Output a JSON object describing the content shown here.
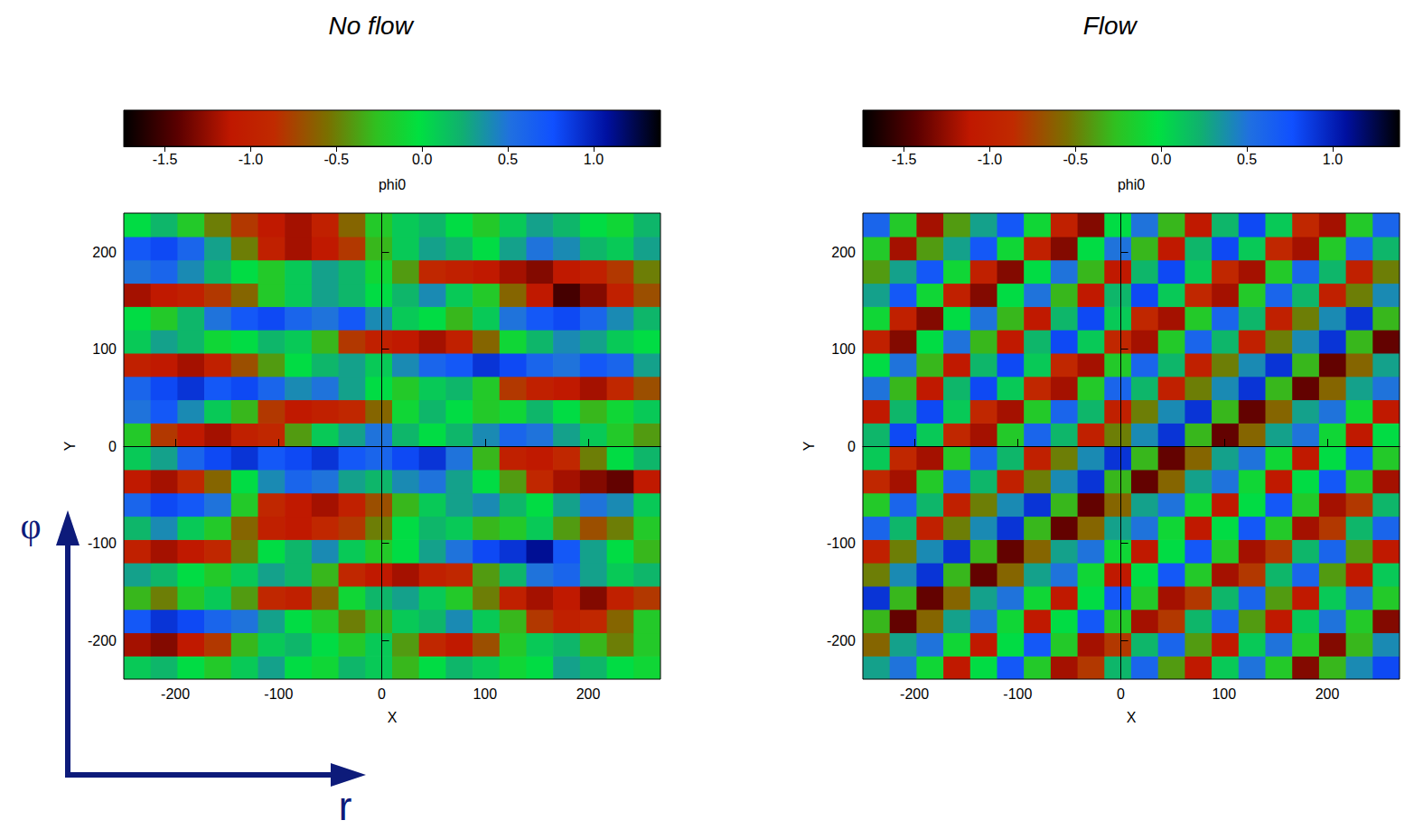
{
  "chart_data": [
    {
      "type": "heatmap",
      "title": "No flow",
      "x_label": "X",
      "y_label": "Y",
      "xlim": [
        -250,
        270
      ],
      "xticks": [
        -200,
        -100,
        0,
        100,
        200
      ],
      "ylim": [
        -240,
        240
      ],
      "yticks": [
        -200,
        -100,
        0,
        100,
        200
      ],
      "x": [
        -237,
        -211,
        -185,
        -159,
        -133,
        -107,
        -81,
        -55,
        -29,
        -3,
        23,
        49,
        75,
        101,
        127,
        153,
        179,
        205,
        231,
        257
      ],
      "y": [
        -228,
        -204,
        -180,
        -156,
        -132,
        -108,
        -84,
        -60,
        -36,
        -12,
        12,
        36,
        60,
        84,
        108,
        132,
        156,
        180,
        204,
        228
      ],
      "values": [
        [
          0.1,
          0.2,
          0.0,
          -0.2,
          0.1,
          0.3,
          0.0,
          -0.1,
          0.2,
          0.1,
          -0.3,
          0.0,
          0.2,
          0.1,
          -0.1,
          0.0,
          0.3,
          0.2,
          0.0,
          -0.1
        ],
        [
          -1.2,
          -1.3,
          -1.1,
          -0.8,
          -0.3,
          0.1,
          0.2,
          0.0,
          -0.2,
          0.1,
          -0.4,
          -0.9,
          -1.1,
          -0.7,
          -0.2,
          0.1,
          0.2,
          -0.3,
          -0.5,
          -0.2
        ],
        [
          0.7,
          0.9,
          0.8,
          0.6,
          0.5,
          0.3,
          0.0,
          -0.2,
          -0.5,
          -0.3,
          0.1,
          0.2,
          0.4,
          0.1,
          -0.3,
          -0.8,
          -1.0,
          -0.9,
          -0.6,
          -0.2
        ],
        [
          -0.3,
          -0.5,
          -0.2,
          0.1,
          -0.4,
          -0.9,
          -1.0,
          -0.6,
          -0.1,
          0.2,
          0.3,
          0.1,
          -0.2,
          -0.5,
          -1.0,
          -1.2,
          -1.1,
          -1.3,
          -1.0,
          -0.8
        ],
        [
          0.3,
          0.2,
          0.0,
          -0.2,
          0.1,
          0.3,
          0.2,
          -0.3,
          -0.9,
          -1.1,
          -1.2,
          -1.0,
          -0.9,
          -0.4,
          0.2,
          0.5,
          0.6,
          0.3,
          0.1,
          0.2
        ],
        [
          -1.0,
          -1.2,
          -1.1,
          -0.9,
          -0.5,
          0.0,
          0.2,
          0.4,
          0.1,
          -0.2,
          0.0,
          0.3,
          0.5,
          0.8,
          0.9,
          1.1,
          0.7,
          0.3,
          0.0,
          -0.3
        ],
        [
          0.2,
          0.4,
          0.1,
          -0.2,
          -0.6,
          -1.0,
          -1.1,
          -0.9,
          -0.8,
          -0.5,
          0.0,
          0.2,
          0.1,
          -0.3,
          -0.2,
          0.1,
          -0.4,
          -0.7,
          -0.5,
          -0.2
        ],
        [
          0.6,
          0.8,
          0.7,
          0.5,
          -0.2,
          -0.9,
          -1.1,
          -1.2,
          -1.0,
          -0.7,
          -0.3,
          0.1,
          0.3,
          0.4,
          0.2,
          0.0,
          0.3,
          0.5,
          0.4,
          0.1
        ],
        [
          -1.1,
          -1.2,
          -0.9,
          -0.6,
          0.0,
          0.4,
          0.6,
          0.5,
          0.3,
          0.2,
          0.4,
          0.5,
          0.3,
          0.0,
          -0.4,
          -0.9,
          -1.2,
          -1.3,
          -1.4,
          -1.1
        ],
        [
          0.1,
          0.3,
          0.6,
          0.8,
          0.9,
          0.7,
          0.8,
          0.9,
          0.7,
          0.6,
          0.8,
          0.9,
          0.5,
          -0.3,
          -1.0,
          -1.1,
          -0.9,
          -0.5,
          0.0,
          0.2
        ],
        [
          -0.2,
          -0.8,
          -1.1,
          -1.2,
          -1.0,
          -0.9,
          -0.4,
          0.1,
          0.3,
          0.5,
          0.2,
          0.0,
          0.2,
          0.4,
          0.6,
          0.5,
          0.3,
          0.1,
          -0.2,
          -0.4
        ],
        [
          0.5,
          0.7,
          0.4,
          0.1,
          -0.3,
          -0.8,
          -1.1,
          -1.0,
          -0.9,
          -0.6,
          -0.1,
          0.2,
          0.0,
          -0.2,
          -0.1,
          0.2,
          0.0,
          -0.3,
          -0.1,
          0.1
        ],
        [
          0.6,
          0.8,
          0.9,
          0.7,
          0.8,
          0.6,
          0.4,
          0.5,
          0.3,
          0.0,
          -0.2,
          0.1,
          0.2,
          -0.2,
          -0.8,
          -1.0,
          -1.1,
          -1.2,
          -0.9,
          -0.7
        ],
        [
          -1.0,
          -1.1,
          -1.2,
          -1.0,
          -0.7,
          -0.4,
          0.0,
          0.2,
          0.3,
          0.1,
          0.4,
          0.6,
          0.7,
          0.9,
          0.8,
          0.6,
          0.5,
          0.7,
          0.6,
          0.3
        ],
        [
          0.1,
          0.3,
          0.2,
          -0.1,
          0.0,
          0.2,
          0.1,
          -0.3,
          -0.8,
          -1.0,
          -1.1,
          -1.2,
          -1.0,
          -0.6,
          -0.1,
          0.2,
          0.4,
          0.3,
          0.1,
          0.0
        ],
        [
          0.0,
          -0.2,
          0.2,
          0.5,
          0.7,
          0.8,
          0.6,
          0.5,
          0.7,
          0.4,
          0.1,
          0.0,
          -0.3,
          0.1,
          0.5,
          0.7,
          0.8,
          0.6,
          0.4,
          0.2
        ],
        [
          -1.2,
          -1.1,
          -1.0,
          -0.8,
          -0.6,
          -0.2,
          0.1,
          0.3,
          0.2,
          0.0,
          0.2,
          0.4,
          0.1,
          -0.2,
          -0.6,
          -1.1,
          -1.5,
          -1.3,
          -1.0,
          -0.7
        ],
        [
          0.5,
          0.6,
          0.4,
          0.2,
          0.0,
          -0.2,
          0.1,
          0.3,
          0.2,
          -0.1,
          -0.4,
          -0.9,
          -1.0,
          -1.1,
          -1.2,
          -1.3,
          -1.1,
          -1.0,
          -0.8,
          -0.5
        ],
        [
          0.7,
          0.8,
          0.6,
          0.3,
          -0.5,
          -1.0,
          -1.2,
          -1.1,
          -0.8,
          -0.3,
          0.1,
          0.3,
          0.2,
          0.0,
          0.3,
          0.5,
          0.4,
          0.2,
          0.1,
          0.3
        ],
        [
          0.0,
          0.2,
          -0.2,
          -0.5,
          -0.8,
          -1.1,
          -1.2,
          -1.0,
          -0.6,
          -0.2,
          0.1,
          0.2,
          0.0,
          -0.2,
          0.1,
          0.3,
          0.2,
          0.0,
          -0.1,
          0.2
        ]
      ],
      "colorbar": {
        "label": "phi0",
        "range": [
          -1.74,
          1.39
        ],
        "ticks": [
          -1.5,
          {
            "value": -1.0,
            "label": "-1.0"
          },
          -0.5,
          {
            "value": 0.0,
            "label": "0.0"
          },
          0.5,
          {
            "value": 1.0,
            "label": "1.0"
          }
        ]
      },
      "annotations": [
        "φ",
        "r"
      ]
    },
    {
      "type": "heatmap",
      "title": "Flow",
      "x_label": "X",
      "y_label": "Y",
      "xlim": [
        -250,
        270
      ],
      "xticks": [
        -200,
        -100,
        0,
        100,
        200
      ],
      "ylim": [
        -240,
        240
      ],
      "yticks": [
        -200,
        -100,
        0,
        100,
        200
      ],
      "x": [
        -237,
        -211,
        -185,
        -159,
        -133,
        -107,
        -81,
        -55,
        -29,
        -3,
        23,
        49,
        75,
        101,
        127,
        153,
        179,
        205,
        231,
        257
      ],
      "y": [
        -228,
        -204,
        -180,
        -156,
        -132,
        -108,
        -84,
        -60,
        -36,
        -12,
        12,
        36,
        60,
        84,
        108,
        132,
        156,
        180,
        204,
        228
      ],
      "values": [
        [
          0.3,
          0.5,
          -0.1,
          -1.1,
          0.0,
          0.7,
          -0.2,
          -1.2,
          -0.8,
          0.2,
          0.6,
          -0.4,
          -1.1,
          0.1,
          0.5,
          -0.2,
          -1.3,
          -0.3,
          0.4,
          0.8
        ],
        [
          -0.6,
          0.3,
          0.5,
          -0.1,
          -1.1,
          0.0,
          0.7,
          -0.2,
          -1.2,
          -0.8,
          0.2,
          0.6,
          -0.4,
          -1.1,
          0.1,
          0.5,
          -0.2,
          -1.3,
          -0.3,
          0.4
        ],
        [
          -0.3,
          -1.4,
          -0.6,
          0.3,
          0.5,
          -0.1,
          -1.1,
          0.0,
          0.7,
          -0.2,
          -1.2,
          -0.8,
          0.2,
          0.6,
          -0.4,
          -1.1,
          0.1,
          0.5,
          -0.2,
          -1.3
        ],
        [
          0.9,
          -0.3,
          -1.4,
          -0.6,
          0.3,
          0.5,
          -0.1,
          -1.1,
          0.0,
          0.7,
          -0.2,
          -1.2,
          -0.8,
          0.2,
          0.6,
          -0.4,
          -1.1,
          0.1,
          0.5,
          -0.2
        ],
        [
          -0.5,
          0.4,
          0.9,
          -0.3,
          -1.4,
          -0.6,
          0.3,
          0.5,
          -0.1,
          -1.1,
          0.0,
          0.7,
          -0.2,
          -1.2,
          -0.8,
          0.2,
          0.6,
          -0.4,
          -1.1,
          0.1
        ],
        [
          -1.0,
          -0.5,
          0.4,
          0.9,
          -0.3,
          -1.4,
          -0.6,
          0.3,
          0.5,
          -0.1,
          -1.1,
          0.0,
          0.7,
          -0.2,
          -1.2,
          -0.8,
          0.2,
          0.6,
          -0.4,
          -1.1
        ],
        [
          0.6,
          0.2,
          -1.0,
          -0.5,
          0.4,
          0.9,
          -0.3,
          -1.4,
          -0.6,
          0.3,
          0.5,
          -0.1,
          -1.1,
          0.0,
          0.7,
          -0.2,
          -1.2,
          -0.8,
          0.2,
          0.6
        ],
        [
          -0.2,
          0.6,
          0.2,
          -1.0,
          -0.5,
          0.4,
          0.9,
          -0.3,
          -1.4,
          -0.6,
          0.3,
          0.5,
          -0.1,
          -1.1,
          0.0,
          0.7,
          -0.2,
          -1.2,
          -0.8,
          0.2
        ],
        [
          -0.9,
          -1.2,
          -0.2,
          0.6,
          0.2,
          -1.0,
          -0.5,
          0.4,
          0.9,
          -0.3,
          -1.4,
          -0.6,
          0.3,
          0.5,
          -0.1,
          -1.1,
          0.0,
          0.7,
          -0.2,
          -1.2
        ],
        [
          0.1,
          -0.9,
          -1.2,
          -0.2,
          0.6,
          0.2,
          -1.0,
          -0.5,
          0.4,
          0.9,
          -0.3,
          -1.4,
          -0.6,
          0.3,
          0.5,
          -0.1,
          -1.1,
          0.0,
          0.7,
          -0.2
        ],
        [
          0.2,
          0.8,
          0.1,
          -0.9,
          -1.2,
          -0.2,
          0.6,
          0.2,
          -1.0,
          -0.5,
          0.4,
          0.9,
          -0.3,
          -1.4,
          -0.6,
          0.3,
          0.5,
          -0.1,
          -1.1,
          0.0
        ],
        [
          -1.1,
          0.2,
          0.8,
          0.1,
          -0.9,
          -1.2,
          -0.2,
          0.6,
          0.2,
          -1.0,
          -0.5,
          0.4,
          0.9,
          -0.3,
          -1.4,
          -0.6,
          0.3,
          0.5,
          -0.1,
          -1.1
        ],
        [
          0.5,
          -0.3,
          -1.1,
          0.2,
          0.8,
          0.1,
          -0.9,
          -1.2,
          -0.2,
          0.6,
          0.2,
          -1.0,
          -0.5,
          0.4,
          0.9,
          -0.3,
          -1.4,
          -0.6,
          0.3,
          0.5
        ],
        [
          0.0,
          0.5,
          -0.3,
          -1.1,
          0.2,
          0.8,
          0.1,
          -0.9,
          -1.2,
          -0.2,
          0.6,
          0.2,
          -1.0,
          -0.5,
          0.4,
          0.9,
          -0.3,
          -1.4,
          -0.6,
          0.3
        ],
        [
          -1.0,
          -1.3,
          0.0,
          0.5,
          -0.3,
          -1.1,
          0.2,
          0.8,
          0.1,
          -0.9,
          -1.2,
          -0.2,
          0.6,
          0.2,
          -1.0,
          -0.5,
          0.4,
          0.9,
          -0.3,
          -1.4
        ],
        [
          -0.1,
          -1.0,
          -1.3,
          0.0,
          0.5,
          -0.3,
          -1.1,
          0.2,
          0.8,
          0.1,
          -0.9,
          -1.2,
          -0.2,
          0.6,
          0.2,
          -1.0,
          -0.5,
          0.4,
          0.9,
          -0.3
        ],
        [
          0.3,
          0.7,
          -0.1,
          -1.0,
          -1.3,
          0.0,
          0.5,
          -0.3,
          -1.1,
          0.2,
          0.8,
          0.1,
          -0.9,
          -1.2,
          -0.2,
          0.6,
          0.2,
          -1.0,
          -0.5,
          0.4
        ],
        [
          -0.4,
          0.3,
          0.7,
          -0.1,
          -1.0,
          -1.3,
          0.0,
          0.5,
          -0.3,
          -1.1,
          0.2,
          0.8,
          0.1,
          -0.9,
          -1.2,
          -0.2,
          0.6,
          0.2,
          -1.0,
          -0.5
        ],
        [
          -0.2,
          -1.2,
          -0.4,
          0.3,
          0.7,
          -0.1,
          -1.0,
          -1.3,
          0.0,
          0.5,
          -0.3,
          -1.1,
          0.2,
          0.8,
          0.1,
          -0.9,
          -1.2,
          -0.2,
          0.6,
          0.2
        ],
        [
          0.6,
          -0.2,
          -1.2,
          -0.4,
          0.3,
          0.7,
          -0.1,
          -1.0,
          -1.3,
          0.0,
          0.5,
          -0.3,
          -1.1,
          0.2,
          0.8,
          0.1,
          -0.9,
          -1.2,
          -0.2,
          0.6
        ]
      ],
      "colorbar": {
        "label": "phi0",
        "range": [
          -1.74,
          1.39
        ],
        "ticks": [
          -1.5,
          {
            "value": -1.0,
            "label": "-1.0"
          },
          -0.5,
          {
            "value": 0.0,
            "label": "0.0"
          },
          0.5,
          {
            "value": 1.0,
            "label": "1.0"
          }
        ]
      }
    }
  ]
}
